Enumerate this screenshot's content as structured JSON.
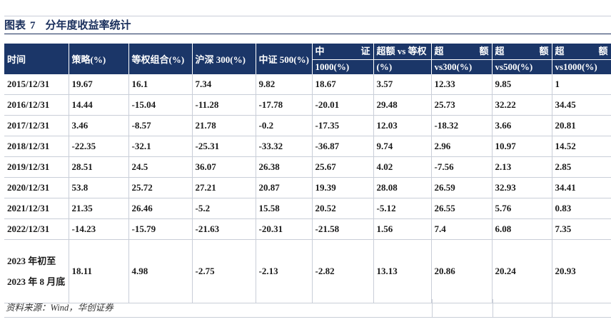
{
  "figure": {
    "label": "图表",
    "number": "7",
    "title": "分年度收益率统计"
  },
  "table": {
    "headers": [
      {
        "single": "时间"
      },
      {
        "single": "策略(%)"
      },
      {
        "single": "等权组合(%)"
      },
      {
        "single": "沪深 300(%)"
      },
      {
        "single": "中证 500(%)"
      },
      {
        "top_left": "中",
        "top_right": "证",
        "bottom": "1000(%)"
      },
      {
        "top_left": "超额 vs 等权",
        "top_right": "",
        "bottom": "(%)"
      },
      {
        "top_left": "超",
        "top_right": "额",
        "bottom": "vs300(%)"
      },
      {
        "top_left": "超",
        "top_right": "额",
        "bottom": "vs500(%)"
      },
      {
        "top_left": "超",
        "top_right": "额",
        "bottom": "vs1000(%)"
      }
    ],
    "rows": [
      [
        "2015/12/31",
        "19.67",
        "16.1",
        "7.34",
        "9.82",
        "18.67",
        "3.57",
        "12.33",
        "9.85",
        "1"
      ],
      [
        "2016/12/31",
        "14.44",
        "-15.04",
        "-11.28",
        "-17.78",
        "-20.01",
        "29.48",
        "25.73",
        "32.22",
        "34.45"
      ],
      [
        "2017/12/31",
        "3.46",
        "-8.57",
        "21.78",
        "-0.2",
        "-17.35",
        "12.03",
        "-18.32",
        "3.66",
        "20.81"
      ],
      [
        "2018/12/31",
        "-22.35",
        "-32.1",
        "-25.31",
        "-33.32",
        "-36.87",
        "9.74",
        "2.96",
        "10.97",
        "14.52"
      ],
      [
        "2019/12/31",
        "28.51",
        "24.5",
        "36.07",
        "26.38",
        "25.67",
        "4.02",
        "-7.56",
        "2.13",
        "2.85"
      ],
      [
        "2020/12/31",
        "53.8",
        "25.72",
        "27.21",
        "20.87",
        "19.39",
        "28.08",
        "26.59",
        "32.93",
        "34.41"
      ],
      [
        "2021/12/31",
        "21.35",
        "26.46",
        "-5.2",
        "15.58",
        "20.52",
        "-5.12",
        "26.55",
        "5.76",
        "0.83"
      ],
      [
        "2022/12/31",
        "-14.23",
        "-15.79",
        "-21.63",
        "-20.31",
        "-21.58",
        "1.56",
        "7.4",
        "6.08",
        "7.35"
      ],
      [
        "2023 年初至 2023 年 8 月底",
        "18.11",
        "4.98",
        "-2.75",
        "-2.13",
        "-2.82",
        "13.13",
        "20.86",
        "20.24",
        "20.93"
      ]
    ]
  },
  "source": "资料来源：Wind，华创证券"
}
